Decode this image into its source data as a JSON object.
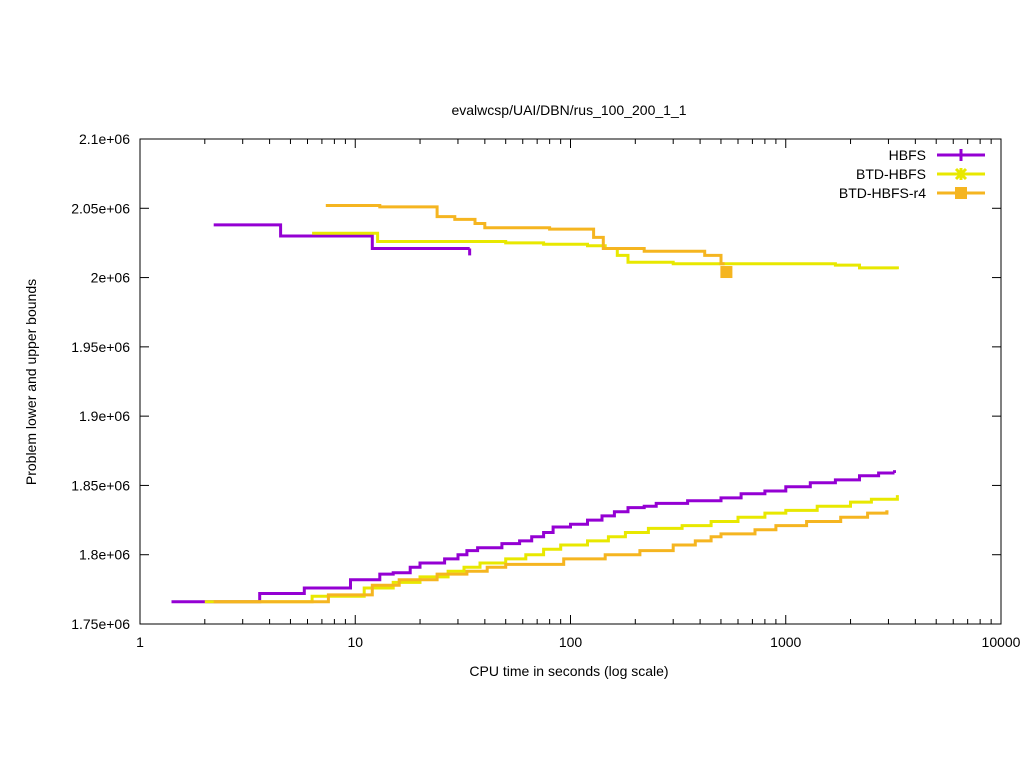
{
  "chart_data": {
    "type": "line",
    "title": "evalwcsp/UAI/DBN/rus_100_200_1_1",
    "xlabel": "CPU time in seconds (log scale)",
    "ylabel": "Problem lower and upper bounds",
    "xscale": "log",
    "xlim": [
      1,
      10000
    ],
    "ylim": [
      1750000,
      2100000
    ],
    "grid": false,
    "legend_position": "top-right",
    "x_ticks": [
      {
        "value": 1,
        "label": "1"
      },
      {
        "value": 10,
        "label": "10"
      },
      {
        "value": 100,
        "label": "100"
      },
      {
        "value": 1000,
        "label": "1000"
      },
      {
        "value": 10000,
        "label": "10000"
      }
    ],
    "y_ticks": [
      {
        "value": 1750000,
        "label": "1.75e+06"
      },
      {
        "value": 1800000,
        "label": "1.8e+06"
      },
      {
        "value": 1850000,
        "label": "1.85e+06"
      },
      {
        "value": 1900000,
        "label": "1.9e+06"
      },
      {
        "value": 1950000,
        "label": "1.95e+06"
      },
      {
        "value": 2000000,
        "label": "2e+06"
      },
      {
        "value": 2050000,
        "label": "2.05e+06"
      },
      {
        "value": 2100000,
        "label": "2.1e+06"
      }
    ],
    "series": [
      {
        "name": "HBFS",
        "color": "#9400d3",
        "marker": "plus",
        "upper": [
          [
            2.2,
            2038000
          ],
          [
            4.5,
            2030000
          ],
          [
            12,
            2021000
          ],
          [
            34,
            2021000
          ]
        ],
        "upper_end_marker": [
          34,
          2016000
        ],
        "lower": [
          [
            1.4,
            1766000
          ],
          [
            3.6,
            1772000
          ],
          [
            5.8,
            1776000
          ],
          [
            9.5,
            1782000
          ],
          [
            13,
            1786000
          ],
          [
            15,
            1787000
          ],
          [
            18,
            1791000
          ],
          [
            20,
            1794000
          ],
          [
            26,
            1797000
          ],
          [
            30,
            1800000
          ],
          [
            33,
            1803000
          ],
          [
            37,
            1805000
          ],
          [
            48,
            1808000
          ],
          [
            58,
            1810000
          ],
          [
            66,
            1813000
          ],
          [
            75,
            1816000
          ],
          [
            83,
            1820000
          ],
          [
            100,
            1822000
          ],
          [
            120,
            1825000
          ],
          [
            140,
            1828000
          ],
          [
            160,
            1831000
          ],
          [
            185,
            1834000
          ],
          [
            220,
            1835000
          ],
          [
            250,
            1837000
          ],
          [
            350,
            1839000
          ],
          [
            500,
            1841000
          ],
          [
            620,
            1844000
          ],
          [
            800,
            1846000
          ],
          [
            1000,
            1849000
          ],
          [
            1300,
            1852000
          ],
          [
            1700,
            1854000
          ],
          [
            2200,
            1857000
          ],
          [
            2700,
            1859000
          ],
          [
            3200,
            1859000
          ]
        ],
        "lower_end_marker": [
          3200,
          1861000
        ]
      },
      {
        "name": "BTD-HBFS",
        "color": "#e8e800",
        "marker": "star",
        "upper": [
          [
            6.3,
            2032000
          ],
          [
            12.7,
            2026000
          ],
          [
            50,
            2025000
          ],
          [
            75,
            2024000
          ],
          [
            120,
            2023000
          ],
          [
            145,
            2021000
          ],
          [
            165,
            2016000
          ],
          [
            185,
            2011000
          ],
          [
            300,
            2010000
          ],
          [
            1700,
            2009000
          ],
          [
            2200,
            2007000
          ],
          [
            3300,
            2006000
          ]
        ],
        "lower": [
          [
            2,
            1766000
          ],
          [
            6.3,
            1770000
          ],
          [
            11,
            1776000
          ],
          [
            15,
            1780000
          ],
          [
            20,
            1784000
          ],
          [
            27,
            1788000
          ],
          [
            32,
            1791000
          ],
          [
            38,
            1794000
          ],
          [
            50,
            1797000
          ],
          [
            62,
            1800000
          ],
          [
            75,
            1804000
          ],
          [
            90,
            1807000
          ],
          [
            120,
            1810000
          ],
          [
            150,
            1813000
          ],
          [
            180,
            1816000
          ],
          [
            230,
            1819000
          ],
          [
            330,
            1821000
          ],
          [
            450,
            1824000
          ],
          [
            600,
            1827000
          ],
          [
            800,
            1830000
          ],
          [
            1000,
            1832000
          ],
          [
            1400,
            1835000
          ],
          [
            2000,
            1838000
          ],
          [
            2500,
            1840000
          ],
          [
            3300,
            1841000
          ]
        ],
        "lower_end_marker": [
          3300,
          1843000
        ]
      },
      {
        "name": "BTD-HBFS-r4",
        "color": "#f5b520",
        "marker": "square",
        "upper": [
          [
            7.3,
            2052000
          ],
          [
            13,
            2051000
          ],
          [
            24,
            2044000
          ],
          [
            29,
            2042000
          ],
          [
            36,
            2039000
          ],
          [
            40,
            2036000
          ],
          [
            80,
            2035000
          ],
          [
            128,
            2029000
          ],
          [
            142,
            2021000
          ],
          [
            220,
            2019000
          ],
          [
            420,
            2016000
          ],
          [
            500,
            2010000
          ],
          [
            520,
            2010000
          ]
        ],
        "upper_marker_point": [
          530,
          2004000
        ],
        "lower": [
          [
            2.2,
            1766000
          ],
          [
            7.5,
            1771000
          ],
          [
            12,
            1778000
          ],
          [
            16,
            1782000
          ],
          [
            24,
            1786000
          ],
          [
            33,
            1788000
          ],
          [
            41,
            1791000
          ],
          [
            50,
            1793000
          ],
          [
            93,
            1797000
          ],
          [
            145,
            1800000
          ],
          [
            210,
            1803000
          ],
          [
            300,
            1807000
          ],
          [
            380,
            1810000
          ],
          [
            450,
            1813000
          ],
          [
            500,
            1815000
          ],
          [
            720,
            1818000
          ],
          [
            900,
            1821000
          ],
          [
            1250,
            1824000
          ],
          [
            1800,
            1827000
          ],
          [
            2400,
            1830000
          ],
          [
            2950,
            1832000
          ]
        ],
        "lower_end_marker": [
          2950,
          1830000
        ]
      }
    ]
  }
}
